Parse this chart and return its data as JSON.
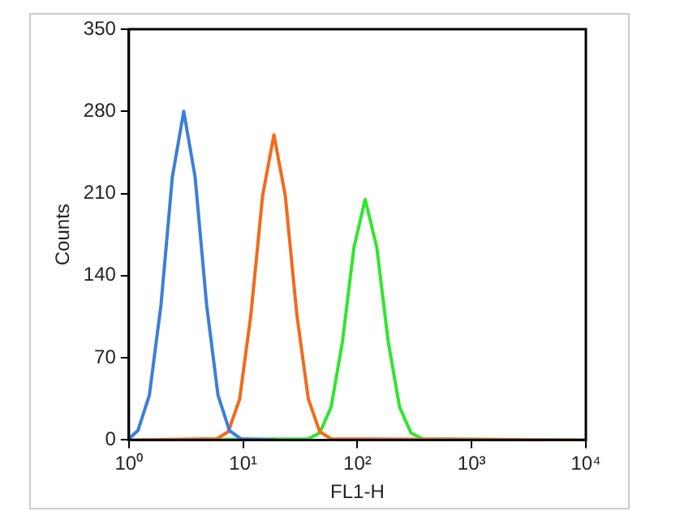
{
  "chart_data": {
    "type": "line",
    "xlabel": "FL1-H",
    "ylabel": "Counts",
    "log": "x",
    "xlim": [
      1,
      10000
    ],
    "xticks": [
      {
        "value": 1,
        "label": "10⁰"
      },
      {
        "value": 10,
        "label": "10¹"
      },
      {
        "value": 100,
        "label": "10²"
      },
      {
        "value": 1000,
        "label": "10³"
      },
      {
        "value": 10000,
        "label": "10⁴"
      }
    ],
    "ylim": [
      0,
      350
    ],
    "yticks": [
      0,
      70,
      140,
      210,
      280,
      350
    ],
    "grid": false,
    "legend": false,
    "marker": "none",
    "line_style": "solid",
    "series": [
      {
        "color": "#3a7fd8",
        "x": [
          1,
          1.2,
          1.51,
          1.91,
          2.4,
          3.02,
          3.8,
          4.79,
          6.03,
          7.59,
          9.55,
          20
        ],
        "values": [
          1,
          8,
          38,
          115,
          224,
          280,
          224,
          115,
          38,
          8,
          1,
          0
        ]
      },
      {
        "color": "#f26a1b",
        "x": [
          1,
          5.89,
          7.41,
          9.33,
          11.7,
          14.8,
          18.6,
          23.4,
          29.5,
          37.2,
          46.8,
          58.9,
          10000
        ],
        "values": [
          0,
          1,
          7,
          35,
          107,
          208,
          260,
          208,
          107,
          35,
          7,
          1,
          0
        ]
      },
      {
        "color": "#2ee62e",
        "x": [
          1,
          37.2,
          46.8,
          58.9,
          74.1,
          93.3,
          117,
          148,
          186,
          234,
          295,
          372,
          10000
        ],
        "values": [
          0,
          1,
          6,
          28,
          84,
          164,
          205,
          164,
          84,
          28,
          6,
          1,
          0
        ]
      }
    ]
  }
}
